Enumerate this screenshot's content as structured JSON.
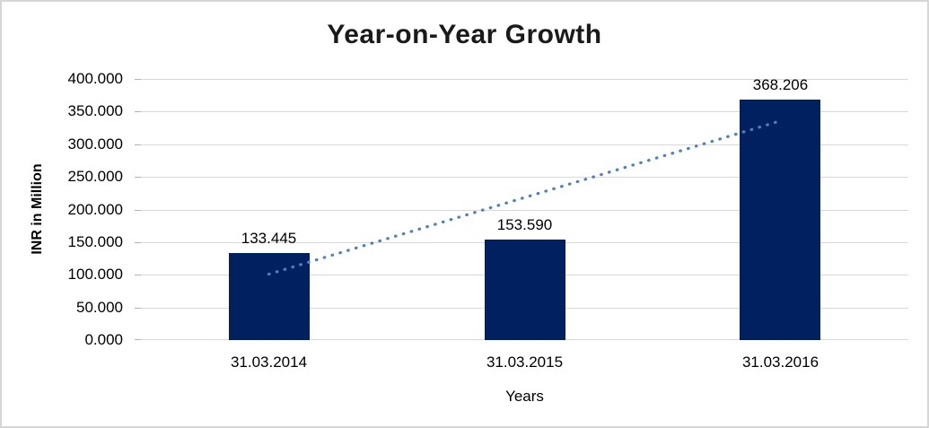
{
  "chart_data": {
    "type": "bar",
    "title": "Year-on-Year Growth",
    "xlabel": "Years",
    "ylabel": "INR in Million",
    "categories": [
      "31.03.2014",
      "31.03.2015",
      "31.03.2016"
    ],
    "values": [
      133.445,
      153.59,
      368.206
    ],
    "bar_labels": [
      "133.445",
      "153.590",
      "368.206"
    ],
    "ylim": [
      0,
      400
    ],
    "y_tick_step": 50,
    "y_ticks": [
      "400.000",
      "350.000",
      "300.000",
      "250.000",
      "200.000",
      "150.000",
      "100.000",
      "50.000",
      "0.000"
    ],
    "grid": true,
    "legend": "none",
    "bar_color": "#002060",
    "gridline_color": "#d9d9d9",
    "trendline": {
      "type": "linear",
      "style": "dotted",
      "color": "#4f81bd",
      "start_value": 101.0,
      "end_value": 335.8
    }
  }
}
